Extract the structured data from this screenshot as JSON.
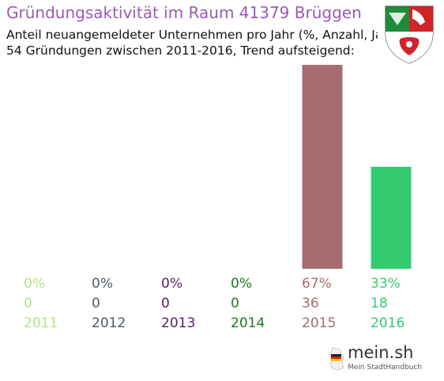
{
  "header": {
    "title": "Gründungsaktivität im Raum 41379 Brüggen",
    "subtitle_line1": "Anteil neuangemeldeter Unternehmen pro Jahr (%, Anzahl, Jahr)",
    "subtitle_line2": "54 Gründungen zwischen 2011-2016, Trend aufsteigend:"
  },
  "coat_of_arms": {
    "icon": "nrw-coat-of-arms-icon",
    "colors": {
      "green": "#1e8c3a",
      "white": "#ffffff",
      "red": "#d2232a"
    }
  },
  "chart_data": {
    "type": "bar",
    "categories": [
      "2011",
      "2012",
      "2013",
      "2014",
      "2015",
      "2016"
    ],
    "values": [
      0,
      0,
      0,
      0,
      36,
      18
    ],
    "percent_labels": [
      "0%",
      "0%",
      "0%",
      "0%",
      "67%",
      "33%"
    ],
    "count_labels": [
      "0",
      "0",
      "0",
      "0",
      "36",
      "18"
    ],
    "colors": [
      "#b5e28a",
      "#4a5a62",
      "#5b1a6b",
      "#1f7a1f",
      "#a56c72",
      "#33cc70"
    ],
    "ylim": [
      0,
      36
    ],
    "grid": false,
    "legend": "none"
  },
  "footer": {
    "logo_name": "mein.sh",
    "logo_tagline": "Mein StadtHandbuch",
    "logo_icon": "germany-map-icon"
  }
}
